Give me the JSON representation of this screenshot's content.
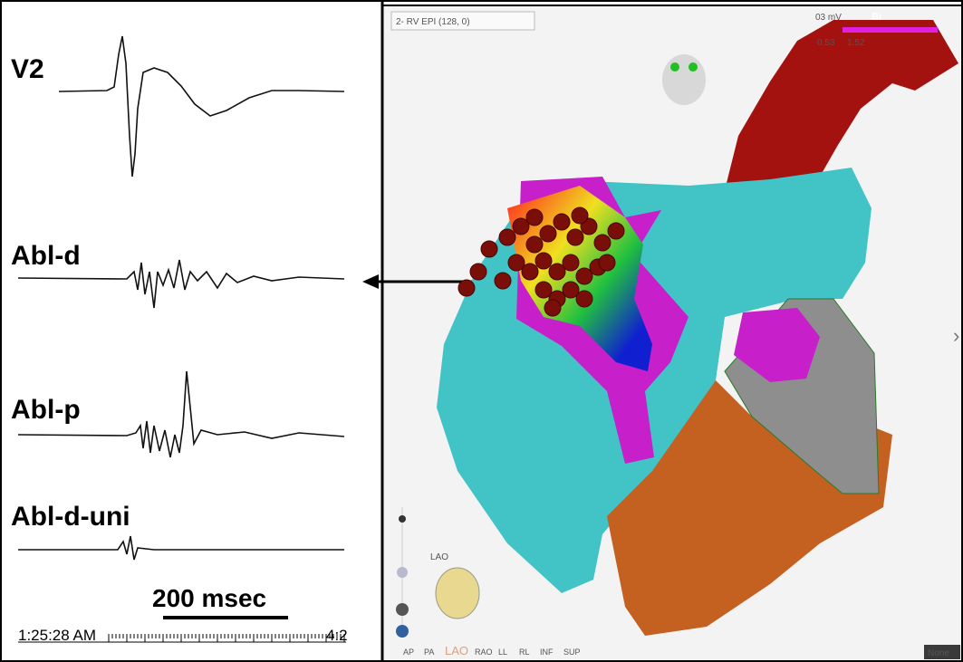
{
  "traces": {
    "labels": [
      "V2",
      "Abl-d",
      "Abl-p",
      "Abl-d-uni"
    ],
    "scale_bar": "200 msec",
    "timestamp": "1:25:28 AM",
    "timestamp_end": "4:2"
  },
  "map": {
    "dropdown": "2- RV EPI (128, 0)",
    "color_scale": {
      "unit_label": "03 mV",
      "mode": "Bi",
      "min": "0.53",
      "max": "1.52"
    },
    "orientation": "LAO",
    "view_buttons": [
      "AP",
      "PA",
      "LAO",
      "RAO",
      "LL",
      "RL",
      "INF",
      "SUP"
    ],
    "status": "None"
  }
}
